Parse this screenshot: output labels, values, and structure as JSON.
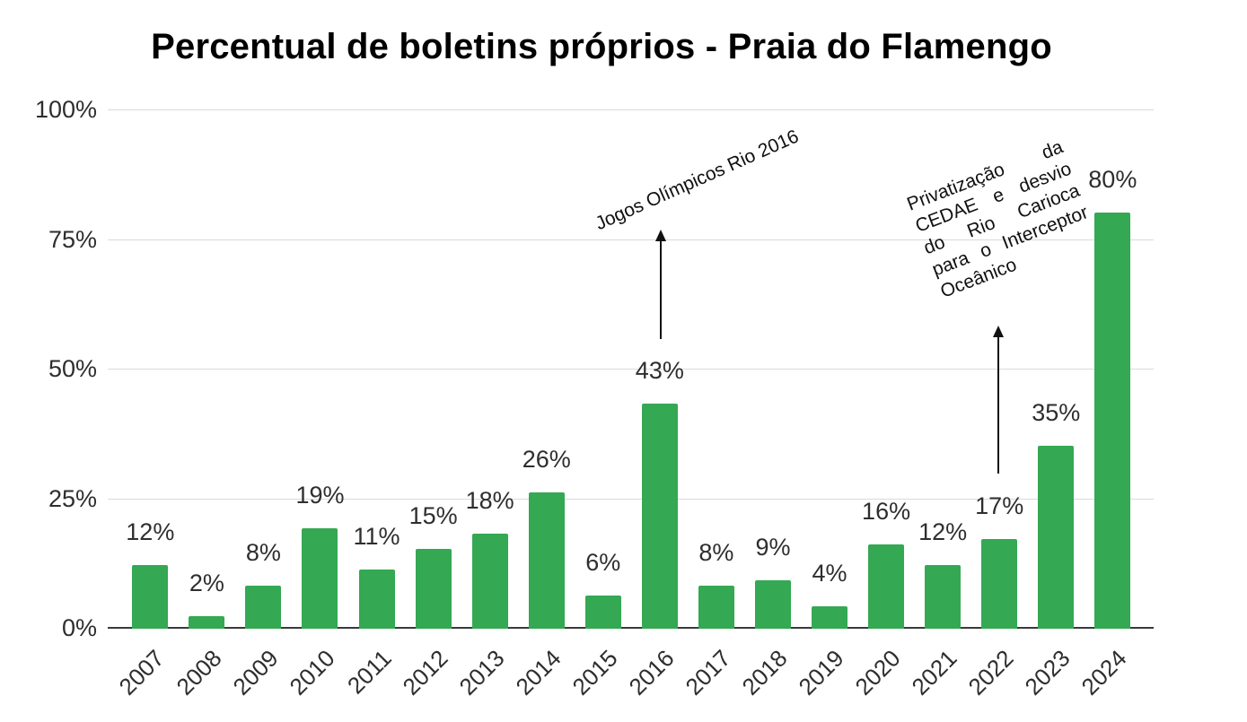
{
  "chart_data": {
    "type": "bar",
    "title": "Percentual de boletins próprios - Praia do Flamengo",
    "categories": [
      "2007",
      "2008",
      "2009",
      "2010",
      "2011",
      "2012",
      "2013",
      "2014",
      "2015",
      "2016",
      "2017",
      "2018",
      "2019",
      "2020",
      "2021",
      "2022",
      "2023",
      "2024"
    ],
    "values": [
      12,
      2,
      8,
      19,
      11,
      15,
      18,
      26,
      6,
      43,
      8,
      9,
      4,
      16,
      12,
      17,
      35,
      80
    ],
    "value_suffix": "%",
    "y_ticks": [
      "0%",
      "25%",
      "50%",
      "75%",
      "100%"
    ],
    "ylim": [
      0,
      100
    ],
    "xlabel": "",
    "ylabel": "",
    "grid": "horizontal",
    "legend": "none",
    "annotations": [
      {
        "text": "Jogos Olímpicos Rio 2016",
        "category": "2016"
      },
      {
        "text": "Privatização da CEDAE e desvio do Rio Carioca para o Interceptor Oceânico",
        "lines": [
          "Privatização da",
          "CEDAE e desvio",
          "do Rio Carioca",
          "para o Interceptor",
          "Oceânico"
        ],
        "category": "2022"
      }
    ],
    "colors": {
      "bar": "#34a853",
      "gridline": "#dadada",
      "axis": "#3a3a3a",
      "label_text": "#2e2e2e",
      "title_text": "#000000",
      "annotation_text": "#111111"
    }
  }
}
